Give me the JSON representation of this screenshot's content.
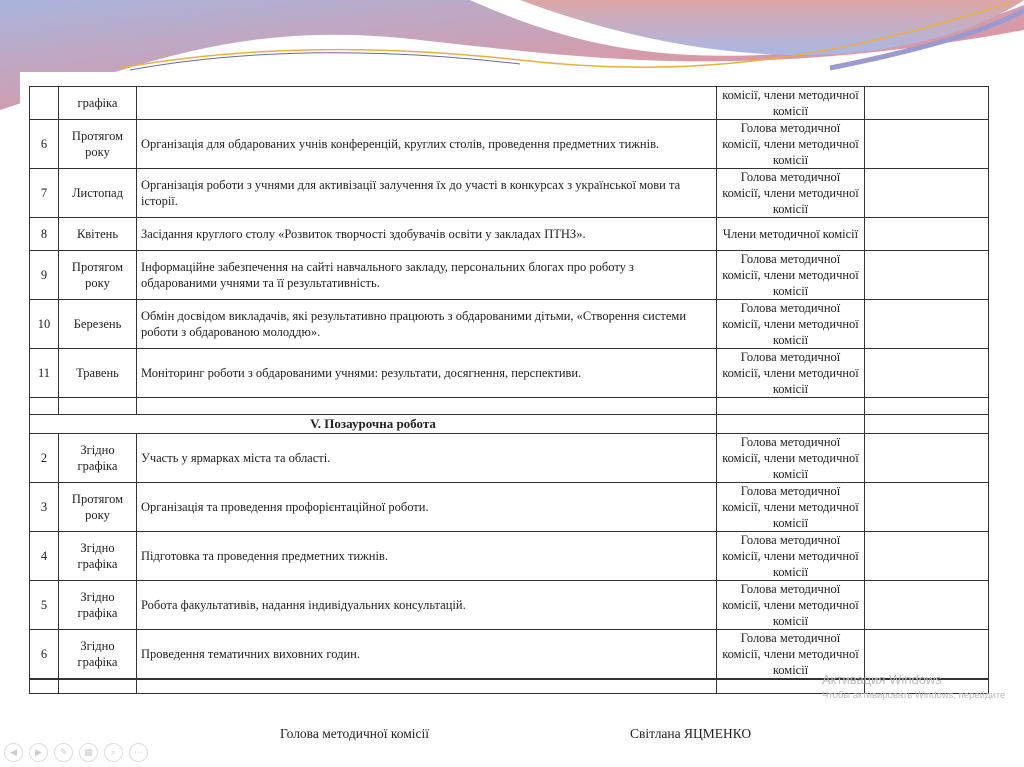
{
  "colors": {
    "wave_pink": "#d98fa0",
    "wave_blue": "#a9b8de",
    "accent_gold": "#e8b040"
  },
  "table": {
    "rows": [
      {
        "num": "",
        "date": "графіка",
        "activity": "",
        "responsible": "комісії, члени методичної комісії",
        "note": ""
      },
      {
        "num": "6",
        "date": "Протягом року",
        "activity": "Організація для  обдарованих учнів конференцій, круглих столів, проведення предметних тижнів.",
        "responsible": "Голова методичної комісії, члени методичної комісії",
        "note": ""
      },
      {
        "num": "7",
        "date": "Листопад",
        "activity": "Організація роботи з учнями для активізації залучення їх до участі в конкурсах з української мови та історії.",
        "responsible": "Голова методичної комісії, члени методичної комісії",
        "note": ""
      },
      {
        "num": "8",
        "date": "Квітень",
        "activity": "Засідання круглого столу «Розвиток творчості здобувачів освіти у закладах ПТНЗ».",
        "responsible": "Члени методичної комісії",
        "note": ""
      },
      {
        "num": "9",
        "date": "Протягом року",
        "activity": "Інформаційне забезпечення на сайті навчального закладу, персональних блогах про роботу з обдарованими учнями та її результативність.",
        "responsible": "Голова методичної комісії, члени методичної комісії",
        "note": ""
      },
      {
        "num": "10",
        "date": "Березень",
        "activity": "Обмін досвідом викладачів, які результативно працюють з обдарованими дітьми, «Створення системи роботи з обдарованою молоддю».",
        "responsible": "Голова методичної комісії, члени методичної комісії",
        "note": ""
      },
      {
        "num": "11",
        "date": "Травень",
        "activity": "Моніторинг роботи з обдарованими учнями: результати, досягнення, перспективи.",
        "responsible": "Голова методичної комісії, члени методичної комісії",
        "note": ""
      },
      {
        "num": "",
        "date": "",
        "activity": "",
        "responsible": "",
        "note": ""
      }
    ],
    "section_title": "V. Позаурочна робота",
    "rows2": [
      {
        "num": "2",
        "date": "Згідно графіка",
        "activity": "Участь у ярмарках міста та області.",
        "responsible": "Голова методичної комісії, члени методичної комісії",
        "note": ""
      },
      {
        "num": "3",
        "date": "Протягом року",
        "activity": "Організація та проведення профорієнтаційної роботи.",
        "responsible": "Голова методичної комісії, члени методичної комісії",
        "note": ""
      },
      {
        "num": "4",
        "date": "Згідно графіка",
        "activity": "Підготовка та проведення предметних тижнів.",
        "responsible": "Голова методичної комісії, члени методичної комісії",
        "note": ""
      },
      {
        "num": "5",
        "date": "Згідно графіка",
        "activity": "Робота факультативів, надання індивідуальних консультацій.",
        "responsible": "Голова методичної комісії, члени методичної комісії",
        "note": ""
      },
      {
        "num": "6",
        "date": "Згідно графіка",
        "activity": "Проведення тематичних виховних годин.",
        "responsible": "Голова методичної комісії, члени методичної комісії",
        "note": ""
      },
      {
        "num": "",
        "date": "",
        "activity": "",
        "responsible": "",
        "note": ""
      }
    ]
  },
  "signature": {
    "position": "Голова методичної комісії",
    "name": "Світлана ЯЦМЕНКО"
  },
  "watermark": {
    "line1": "Активация Windows",
    "line2": "Чтобы активировать Windows, перейдите"
  },
  "nav_icons": [
    "previous-icon",
    "next-icon",
    "pen-icon",
    "slides-icon",
    "zoom-icon",
    "more-icon"
  ]
}
